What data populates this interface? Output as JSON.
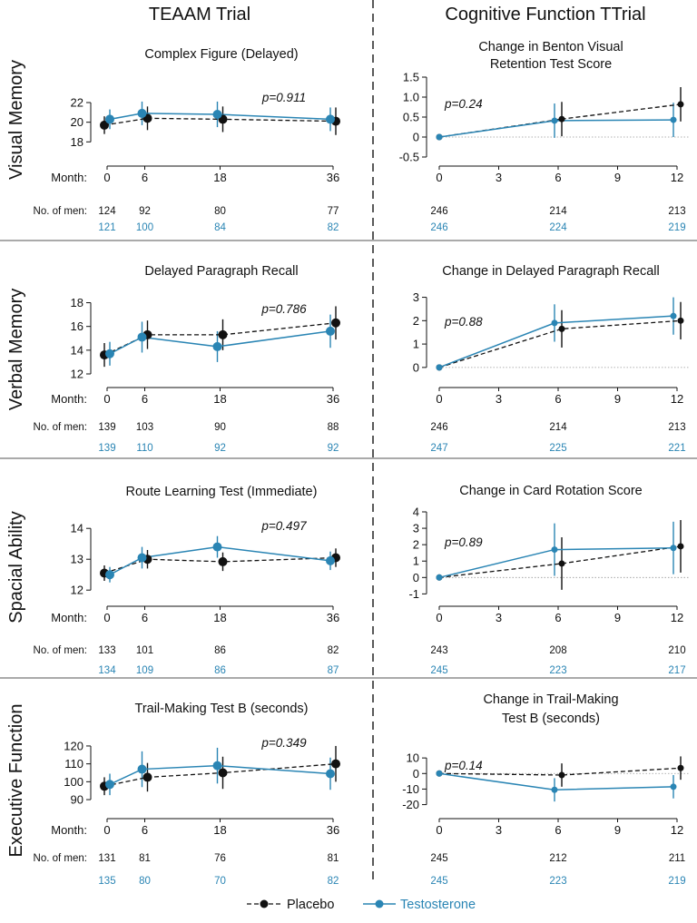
{
  "headers": {
    "left": "TEAAM Trial",
    "right": "Cognitive Function TTrial"
  },
  "row_labels": [
    "Visual Memory",
    "Verbal Memory",
    "Spacial Ability",
    "Executive Function"
  ],
  "row_label_month": "Month:",
  "row_label_men": "No. of men:",
  "colors": {
    "placebo": "#111111",
    "testosterone": "#2a85b4"
  },
  "legend": {
    "placebo": "Placebo",
    "testosterone": "Testosterone",
    "position": "bottom-center"
  },
  "chart_data": [
    {
      "type": "line",
      "panel": "teaam-visual",
      "title": [
        "Complex Figure (Delayed)"
      ],
      "x": [
        0,
        6,
        18,
        36
      ],
      "x_ticks": [
        "0",
        "6",
        "18",
        "36"
      ],
      "y_ticks": [
        "18",
        "20",
        "22"
      ],
      "ylim": [
        17.2,
        23.2
      ],
      "pvalue": "p=0.911",
      "series": [
        {
          "name": "Placebo",
          "values": [
            19.7,
            20.4,
            20.3,
            20.1
          ],
          "err": [
            0.9,
            1.2,
            1.3,
            1.4
          ]
        },
        {
          "name": "Testosterone",
          "values": [
            20.3,
            20.9,
            20.8,
            20.3
          ],
          "err": [
            1.0,
            1.2,
            1.3,
            1.2
          ]
        }
      ],
      "men_placebo": [
        "124",
        "92",
        "80",
        "77"
      ],
      "men_testosterone": [
        "121",
        "100",
        "84",
        "82"
      ]
    },
    {
      "type": "line",
      "panel": "ttrial-visual",
      "title": [
        "Change in Benton Visual",
        "Retention Test Score"
      ],
      "x": [
        0,
        6,
        12
      ],
      "x_ticks": [
        "0",
        "3",
        "6",
        "9",
        "12"
      ],
      "y_ticks": [
        "-0.5",
        "0",
        "0.5",
        "1.0",
        "1.5"
      ],
      "ylim": [
        -0.5,
        1.5
      ],
      "pvalue": "p=0.24",
      "series": [
        {
          "name": "Placebo",
          "values": [
            0,
            0.45,
            0.82
          ],
          "err": [
            0,
            0.43,
            0.43
          ]
        },
        {
          "name": "Testosterone",
          "values": [
            0,
            0.41,
            0.43
          ],
          "err": [
            0,
            0.43,
            0.43
          ]
        }
      ],
      "men_placebo": [
        "246",
        "214",
        "213"
      ],
      "men_testosterone": [
        "246",
        "224",
        "219"
      ]
    },
    {
      "type": "line",
      "panel": "teaam-verbal",
      "title": [
        "Delayed Paragraph Recall"
      ],
      "x": [
        0,
        6,
        18,
        36
      ],
      "x_ticks": [
        "0",
        "6",
        "18",
        "36"
      ],
      "y_ticks": [
        "12",
        "14",
        "16",
        "18"
      ],
      "ylim": [
        12,
        18.5
      ],
      "pvalue": "p=0.786",
      "series": [
        {
          "name": "Placebo",
          "values": [
            13.6,
            15.3,
            15.3,
            16.3
          ],
          "err": [
            1.0,
            1.2,
            1.3,
            1.4
          ]
        },
        {
          "name": "Testosterone",
          "values": [
            13.7,
            15.1,
            14.3,
            15.6
          ],
          "err": [
            1.0,
            1.3,
            1.3,
            1.4
          ]
        }
      ],
      "men_placebo": [
        "139",
        "103",
        "90",
        "88"
      ],
      "men_testosterone": [
        "139",
        "110",
        "92",
        "92"
      ]
    },
    {
      "type": "line",
      "panel": "ttrial-verbal",
      "title": [
        "Change in Delayed Paragraph Recall"
      ],
      "x": [
        0,
        6,
        12
      ],
      "x_ticks": [
        "0",
        "3",
        "6",
        "9",
        "12"
      ],
      "y_ticks": [
        "0",
        "1",
        "2",
        "3"
      ],
      "ylim": [
        -0.2,
        3.1
      ],
      "pvalue": "p=0.88",
      "series": [
        {
          "name": "Placebo",
          "values": [
            0,
            1.65,
            2.0
          ],
          "err": [
            0,
            0.8,
            0.8
          ]
        },
        {
          "name": "Testosterone",
          "values": [
            0,
            1.9,
            2.2
          ],
          "err": [
            0,
            0.8,
            0.8
          ]
        }
      ],
      "men_placebo": [
        "246",
        "214",
        "213"
      ],
      "men_testosterone": [
        "247",
        "225",
        "221"
      ]
    },
    {
      "type": "line",
      "panel": "teaam-spatial",
      "title": [
        "Route Learning Test (Immediate)"
      ],
      "x": [
        0,
        6,
        18,
        36
      ],
      "x_ticks": [
        "0",
        "6",
        "18",
        "36"
      ],
      "y_ticks": [
        "12",
        "13",
        "14"
      ],
      "ylim": [
        11.8,
        14.3
      ],
      "pvalue": "p=0.497",
      "series": [
        {
          "name": "Placebo",
          "values": [
            12.55,
            13.0,
            12.92,
            13.05
          ],
          "err": [
            0.25,
            0.3,
            0.3,
            0.3
          ]
        },
        {
          "name": "Testosterone",
          "values": [
            12.5,
            13.05,
            13.4,
            12.95
          ],
          "err": [
            0.25,
            0.35,
            0.35,
            0.3
          ]
        }
      ],
      "men_placebo": [
        "133",
        "101",
        "86",
        "82"
      ],
      "men_testosterone": [
        "134",
        "109",
        "86",
        "87"
      ]
    },
    {
      "type": "line",
      "panel": "ttrial-spatial",
      "title": [
        "Change in Card Rotation Score"
      ],
      "x": [
        0,
        6,
        12
      ],
      "x_ticks": [
        "0",
        "3",
        "6",
        "9",
        "12"
      ],
      "y_ticks": [
        "-1",
        "0",
        "1",
        "2",
        "3",
        "4"
      ],
      "ylim": [
        -1.2,
        4.0
      ],
      "pvalue": "p=0.89",
      "series": [
        {
          "name": "Placebo",
          "values": [
            0,
            0.85,
            1.9
          ],
          "err": [
            0,
            1.6,
            1.6
          ]
        },
        {
          "name": "Testosterone",
          "values": [
            0,
            1.7,
            1.8
          ],
          "err": [
            0,
            1.6,
            1.6
          ]
        }
      ],
      "men_placebo": [
        "243",
        "208",
        "210"
      ],
      "men_testosterone": [
        "245",
        "223",
        "217"
      ]
    },
    {
      "type": "line",
      "panel": "teaam-executive",
      "title": [
        "Trail-Making Test B (seconds)"
      ],
      "x": [
        0,
        6,
        18,
        36
      ],
      "x_ticks": [
        "0",
        "6",
        "18",
        "36"
      ],
      "y_ticks": [
        "90",
        "100",
        "110",
        "120"
      ],
      "ylim": [
        88,
        122
      ],
      "pvalue": "p=0.349",
      "series": [
        {
          "name": "Placebo",
          "values": [
            97.5,
            102.5,
            105,
            110
          ],
          "err": [
            5,
            8,
            9,
            10
          ]
        },
        {
          "name": "Testosterone",
          "values": [
            98.5,
            107,
            109,
            104.5
          ],
          "err": [
            6,
            10,
            10,
            9
          ]
        }
      ],
      "men_placebo": [
        "131",
        "81",
        "76",
        "81"
      ],
      "men_testosterone": [
        "135",
        "80",
        "70",
        "82"
      ]
    },
    {
      "type": "line",
      "panel": "ttrial-executive",
      "title": [
        "Change in Trail-Making",
        "Test B (seconds)"
      ],
      "x": [
        0,
        6,
        12
      ],
      "x_ticks": [
        "0",
        "3",
        "6",
        "9",
        "12"
      ],
      "y_ticks": [
        "-20",
        "-10",
        "0",
        "10"
      ],
      "ylim": [
        -22,
        13
      ],
      "pvalue": "p=0.14",
      "series": [
        {
          "name": "Placebo",
          "values": [
            0,
            -1,
            3.5
          ],
          "err": [
            0,
            7.5,
            7.5
          ]
        },
        {
          "name": "Testosterone",
          "values": [
            0,
            -10.5,
            -8.5
          ],
          "err": [
            0,
            7.5,
            7.5
          ]
        }
      ],
      "men_placebo": [
        "245",
        "212",
        "211"
      ],
      "men_testosterone": [
        "245",
        "223",
        "219"
      ]
    }
  ]
}
